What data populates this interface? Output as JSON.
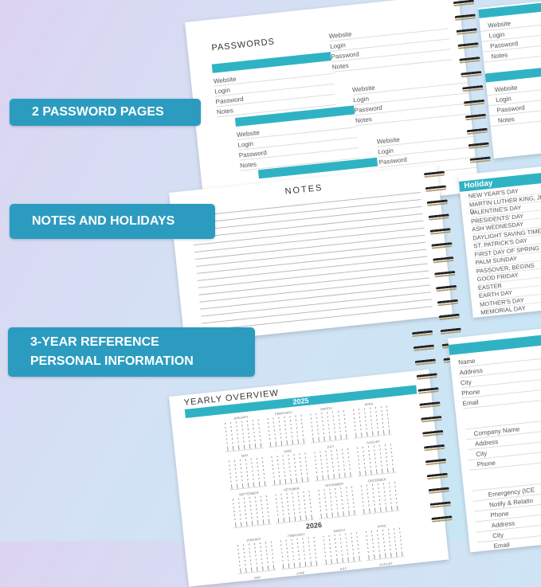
{
  "labels": {
    "passwords": "2 PASSWORD PAGES",
    "notes": "NOTES AND HOLIDAYS",
    "reference_line1": "3-YEAR REFERENCE",
    "reference_line2": "PERSONAL INFORMATION"
  },
  "passwords": {
    "title": "PASSWORDS",
    "fields": [
      "Website",
      "Login",
      "Password",
      "Notes"
    ]
  },
  "notes": {
    "title": "NOTES"
  },
  "holiday": {
    "title": "Holiday",
    "items": [
      "NEW YEAR'S DAY",
      "MARTIN LUTHER KING, JR. D",
      "VALENTINE'S DAY",
      "PRESIDENTS' DAY",
      "ASH WEDNESDAY",
      "DAYLIGHT SAVING TIME",
      "ST. PATRICK'S DAY",
      "FIRST DAY OF SPRING",
      "PALM SUNDAY",
      "PASSOVER, BEGINS",
      "GOOD FRIDAY",
      "EASTER",
      "EARTH DAY",
      "MOTHER'S DAY",
      "MEMORIAL DAY"
    ]
  },
  "yearly": {
    "title": "YEARLY OVERVIEW",
    "year1": "2025",
    "year2": "2026",
    "months": [
      "JANUARY",
      "FEBRUARY",
      "MARCH",
      "APRIL",
      "MAY",
      "JUNE",
      "JULY",
      "AUGUST",
      "SEPTEMBER",
      "OCTOBER",
      "NOVEMBER",
      "DECEMBER"
    ]
  },
  "personal": {
    "group1": [
      "Name",
      "Address",
      "City",
      "Phone",
      "Email"
    ],
    "group2": [
      "Company Name",
      "Address",
      "City",
      "Phone"
    ],
    "group3": [
      "Emergency (ICE",
      "Notify & Relatio",
      "Phone",
      "Address",
      "City",
      "Email"
    ]
  },
  "colors": {
    "accent": "#2fb3c4",
    "label": "#2b9cc0"
  }
}
